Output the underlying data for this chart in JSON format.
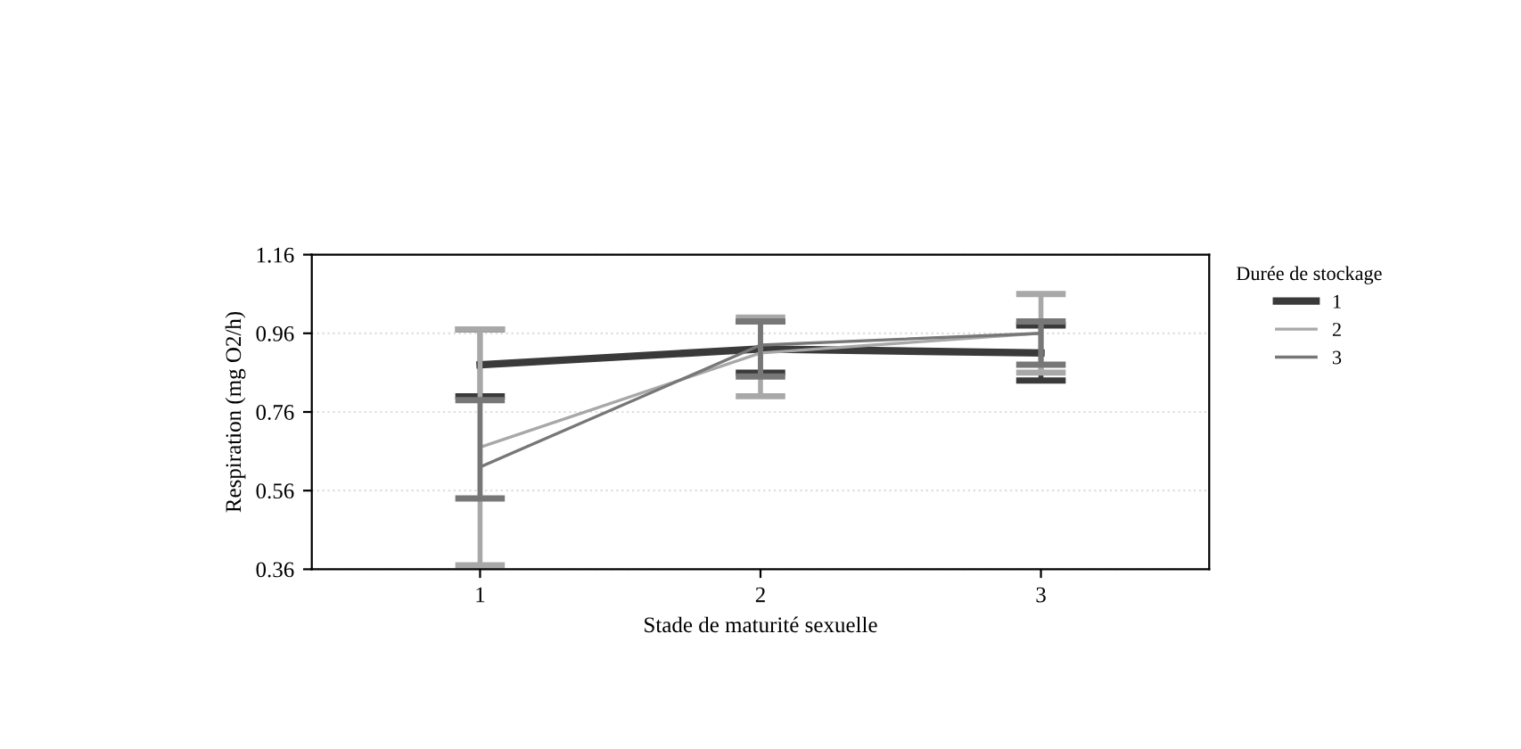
{
  "chart_data": {
    "type": "line",
    "xlabel": "Stade de maturité sexuelle",
    "ylabel": "Respiration (mg O2/h)",
    "legend_title": "Durée de stockage",
    "categories": [
      "1",
      "2",
      "3"
    ],
    "ylim": [
      0.36,
      1.16
    ],
    "yticks": [
      {
        "value": 0.36,
        "label": "0.36"
      },
      {
        "value": 0.56,
        "label": "0.56"
      },
      {
        "value": 0.76,
        "label": "0.76"
      },
      {
        "value": 0.96,
        "label": "0.96"
      },
      {
        "value": 1.16,
        "label": "1.16"
      }
    ],
    "grid": "y",
    "legend": "right",
    "marker": "none",
    "series": [
      {
        "name": "1",
        "color": "#3a3a3a",
        "values": [
          0.88,
          0.92,
          0.91
        ],
        "errors": [
          [
            0.8,
            0.97
          ],
          [
            0.86,
            0.99
          ],
          [
            0.84,
            0.98
          ]
        ]
      },
      {
        "name": "2",
        "color": "#a8a8a8",
        "values": [
          0.67,
          0.91,
          0.96
        ],
        "errors": [
          [
            0.37,
            0.97
          ],
          [
            0.8,
            1.0
          ],
          [
            0.86,
            1.06
          ]
        ]
      },
      {
        "name": "3",
        "color": "#777777",
        "values": [
          0.62,
          0.93,
          0.96
        ],
        "errors": [
          [
            0.54,
            0.79
          ],
          [
            0.85,
            0.99
          ],
          [
            0.88,
            0.99
          ]
        ]
      }
    ]
  }
}
